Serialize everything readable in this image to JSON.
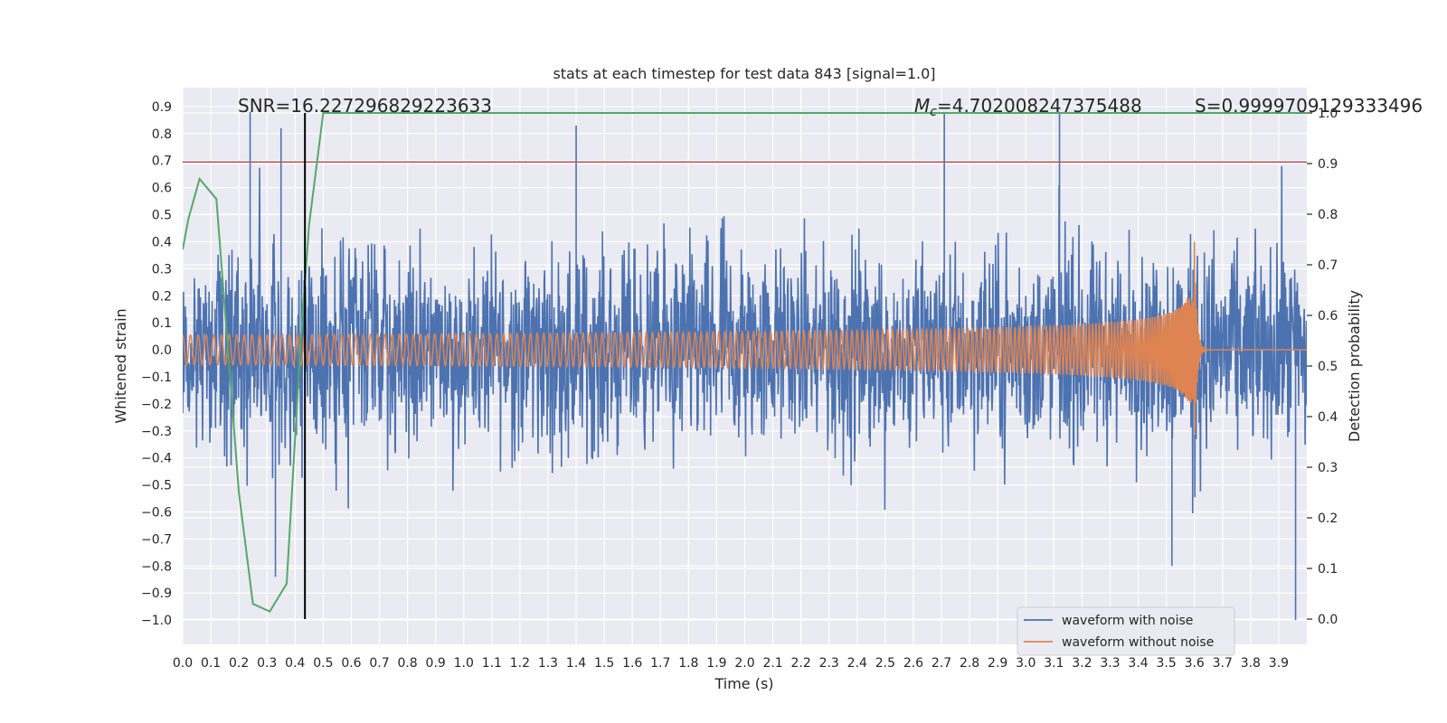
{
  "chart_data": {
    "type": "line",
    "title": "stats at each timestep for test data 843 [signal=1.0]",
    "xlabel": "Time (s)",
    "ylabel": "Whitened strain",
    "ylabel_right": "Detection probability",
    "xlim": [
      0.0,
      4.0
    ],
    "ylim": [
      -1.09,
      0.97
    ],
    "ylim_right": [
      -0.05,
      1.05
    ],
    "x_ticks": [
      0.0,
      0.1,
      0.2,
      0.3,
      0.4,
      0.5,
      0.6,
      0.7,
      0.8,
      0.9,
      1.0,
      1.1,
      1.2,
      1.3,
      1.4,
      1.5,
      1.6,
      1.7,
      1.8,
      1.9,
      2.0,
      2.1,
      2.2,
      2.3,
      2.4,
      2.5,
      2.6,
      2.7,
      2.8,
      2.9,
      3.0,
      3.1,
      3.2,
      3.3,
      3.4,
      3.5,
      3.6,
      3.7,
      3.8,
      3.9
    ],
    "x_tick_labels": [
      "0.0",
      "0.1",
      "0.2",
      "0.3",
      "0.4",
      "0.5",
      "0.6",
      "0.7",
      "0.8",
      "0.9",
      "1.0",
      "1.1",
      "1.2",
      "1.3",
      "1.4",
      "1.5",
      "1.6",
      "1.7",
      "1.8",
      "1.9",
      "2.0",
      "2.1",
      "2.2",
      "2.3",
      "2.4",
      "2.5",
      "2.6",
      "2.7",
      "2.8",
      "2.9",
      "3.0",
      "3.1",
      "3.2",
      "3.3",
      "3.4",
      "3.5",
      "3.6",
      "3.7",
      "3.8",
      "3.9"
    ],
    "y_ticks": [
      0.9,
      0.8,
      0.7,
      0.6,
      0.5,
      0.4,
      0.3,
      0.2,
      0.1,
      0.0,
      -0.1,
      -0.2,
      -0.3,
      -0.4,
      -0.5,
      -0.6,
      -0.7,
      -0.8,
      -0.9,
      -1.0
    ],
    "y_tick_labels": [
      "0.9",
      "0.8",
      "0.7",
      "0.6",
      "0.5",
      "0.4",
      "0.3",
      "0.2",
      "0.1",
      "0.0",
      "−0.1",
      "−0.2",
      "−0.3",
      "−0.4",
      "−0.5",
      "−0.6",
      "−0.7",
      "−0.8",
      "−0.9",
      "−1.0"
    ],
    "y_right_ticks": [
      1.0,
      0.9,
      0.8,
      0.7,
      0.6,
      0.5,
      0.4,
      0.3,
      0.2,
      0.1,
      0.0
    ],
    "y_right_tick_labels": [
      "1.0",
      "0.9",
      "0.8",
      "0.7",
      "0.6",
      "0.5",
      "0.4",
      "0.3",
      "0.2",
      "0.1",
      "0.0"
    ],
    "grid": true,
    "legend_position": "lower-right",
    "series": [
      {
        "name": "waveform with noise",
        "color": "#4c72b0",
        "kind": "noisy strain, dense oscillation",
        "typical_amplitude": 0.3,
        "min": -1.0,
        "max": 0.88,
        "notable_peaks": [
          {
            "x": 0.24,
            "y": 0.88
          },
          {
            "x": 0.35,
            "y": 0.82
          },
          {
            "x": 1.4,
            "y": 0.83
          },
          {
            "x": 2.71,
            "y": 0.88
          },
          {
            "x": 3.12,
            "y": 0.88
          },
          {
            "x": 3.96,
            "y": -1.0
          },
          {
            "x": 0.33,
            "y": -0.84
          },
          {
            "x": 3.52,
            "y": -0.8
          }
        ]
      },
      {
        "name": "waveform without noise",
        "color": "#dd8452",
        "kind": "inspiral chirp",
        "chirp": {
          "t_start": 0.0,
          "t_merger": 3.6,
          "t_end": 4.0,
          "f0": 36,
          "f_end": 240,
          "amp_start": 0.055,
          "amp_merger": 0.4
        }
      },
      {
        "name": "detection probability",
        "color": "#55a868",
        "axis": "right",
        "x": [
          0.0,
          0.02,
          0.06,
          0.12,
          0.2,
          0.25,
          0.31,
          0.37,
          0.42,
          0.45,
          0.5,
          4.0
        ],
        "values": [
          0.73,
          0.79,
          0.87,
          0.83,
          0.25,
          0.03,
          0.015,
          0.07,
          0.55,
          0.78,
          1.0,
          1.0
        ]
      }
    ],
    "hlines": [
      {
        "y": 0.695,
        "axis": "left",
        "color": "#c44e52"
      }
    ],
    "vlines": [
      {
        "x": 0.435,
        "color": "#000000"
      }
    ],
    "annotations": {
      "snr": "SNR=16.227296829223633",
      "mc_symbol": "M",
      "mc_sub": "c",
      "mc_value": "=4.702008247375488",
      "s": "S=0.9999709129333496"
    }
  }
}
